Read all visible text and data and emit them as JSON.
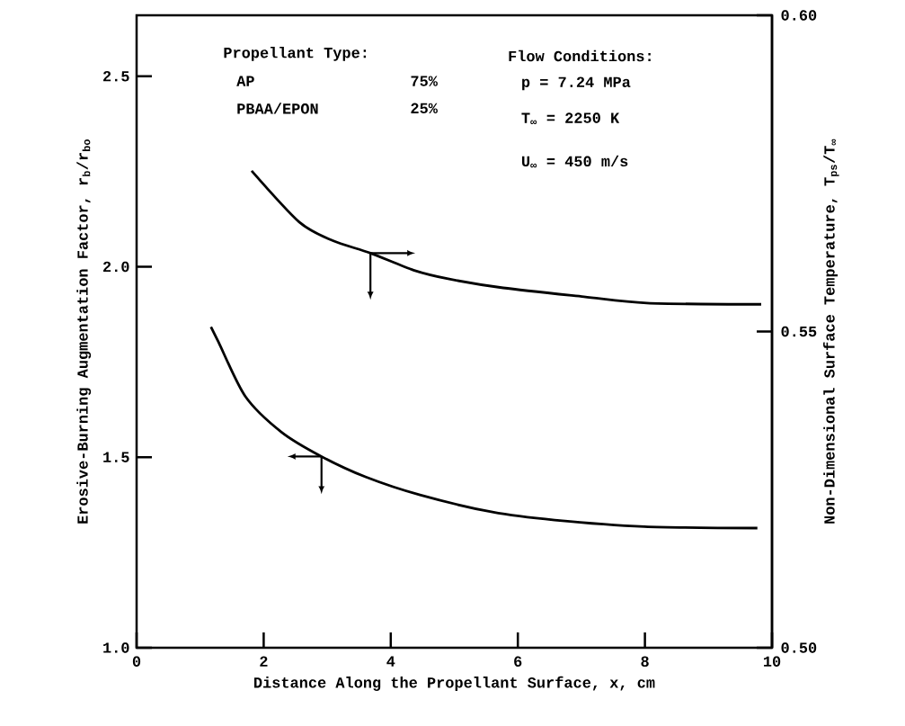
{
  "chart_data": {
    "type": "line",
    "xlabel": "Distance Along the Propellant Surface, x, cm",
    "ylabel": "Erosive-Burning Augmentation Factor, r$_{b}$/r$_{bo}$",
    "y2label": "Non-Dimensional Surface Temperature, T$_{ps}$/T$_{∞}$",
    "annotations": [
      "Propellant Type:",
      "AP",
      "75%",
      "PBAA/EPON",
      "25%",
      "Flow Conditions:",
      "p = 7.24 MPa",
      "T$_{∞}$ = 2250 K",
      "U$_{∞}$ = 450 m/s"
    ],
    "series": [
      {
        "color": "#000000",
        "axis": "y2",
        "x": [
          1.81,
          2.56,
          3.08,
          3.68,
          4.36,
          4.92,
          5.77,
          7.04,
          8.03,
          9.83
        ],
        "values": [
          0.5754,
          0.5673,
          0.5644,
          0.5624,
          0.5597,
          0.5583,
          0.5569,
          0.5555,
          0.5545,
          0.5543
        ]
      },
      {
        "color": "#000000",
        "axis": "y",
        "x": [
          1.17,
          1.29,
          1.71,
          2.28,
          2.91,
          3.61,
          4.46,
          5.6,
          6.58,
          7.99,
          9.77
        ],
        "values": [
          1.842,
          1.802,
          1.66,
          1.566,
          1.502,
          1.448,
          1.401,
          1.356,
          1.335,
          1.318,
          1.314
        ]
      }
    ],
    "xlim": [
      0,
      10
    ],
    "xticks": [
      0,
      2,
      4,
      6,
      8,
      10
    ],
    "ylim": [
      1.0,
      2.66
    ],
    "yticks": [
      {
        "value": 1.0,
        "label": "1.0"
      },
      {
        "value": 1.5,
        "label": "1.5"
      },
      {
        "value": 2.0,
        "label": "2.0"
      },
      {
        "value": 2.5,
        "label": "2.5"
      }
    ],
    "y2lim": [
      0.5,
      0.6
    ],
    "y2ticks": [
      {
        "value": 0.5,
        "label": "0.50"
      },
      {
        "value": 0.55,
        "label": "0.55"
      },
      {
        "value": 0.6,
        "label": "0.60"
      }
    ],
    "marker": "none",
    "line_style": "solid"
  }
}
